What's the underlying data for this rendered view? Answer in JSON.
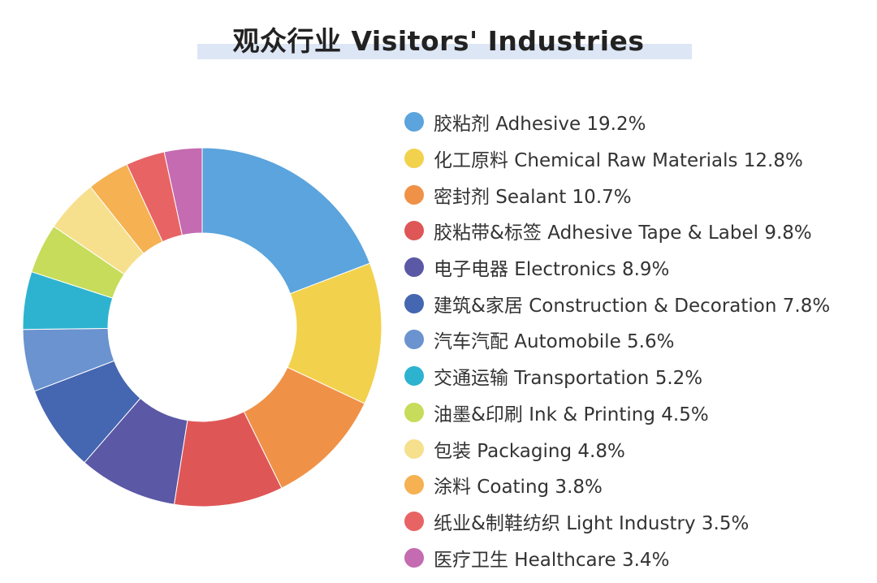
{
  "header": {
    "title": "观众行业 Visitors' Industries"
  },
  "chart_data": {
    "type": "pie",
    "title": "观众行业 Visitors' Industries",
    "donut": true,
    "legend_position": "right",
    "slices": [
      {
        "label": "胶粘剂 Adhesive 19.2%",
        "value": 19.2,
        "color": "#5ba4dd"
      },
      {
        "label": "化工原料 Chemical Raw Materials 12.8%",
        "value": 12.8,
        "color": "#f2d14d"
      },
      {
        "label": "密封剂 Sealant 10.7%",
        "value": 10.7,
        "color": "#ef9248"
      },
      {
        "label": "胶粘带&标签 Adhesive Tape & Label 9.8%",
        "value": 9.8,
        "color": "#df5656"
      },
      {
        "label": "电子电器 Electronics 8.9%",
        "value": 8.9,
        "color": "#5b58a6"
      },
      {
        "label": "建筑&家居 Construction & Decoration 7.8%",
        "value": 7.8,
        "color": "#4566b0"
      },
      {
        "label": "汽车汽配 Automobile 5.6%",
        "value": 5.6,
        "color": "#6a93cf"
      },
      {
        "label": "交通运输 Transportation 5.2%",
        "value": 5.2,
        "color": "#2db3cf"
      },
      {
        "label": "油墨&印刷 Ink & Printing 4.5%",
        "value": 4.5,
        "color": "#c6dc5a"
      },
      {
        "label": "包装 Packaging 4.8%",
        "value": 4.8,
        "color": "#f6e08e"
      },
      {
        "label": "涂料 Coating 3.8%",
        "value": 3.8,
        "color": "#f5b152"
      },
      {
        "label": "纸业&制鞋纺织 Light Industry 3.5%",
        "value": 3.5,
        "color": "#e86464"
      },
      {
        "label": "医疗卫生 Healthcare 3.4%",
        "value": 3.4,
        "color": "#c46bb1"
      }
    ]
  }
}
